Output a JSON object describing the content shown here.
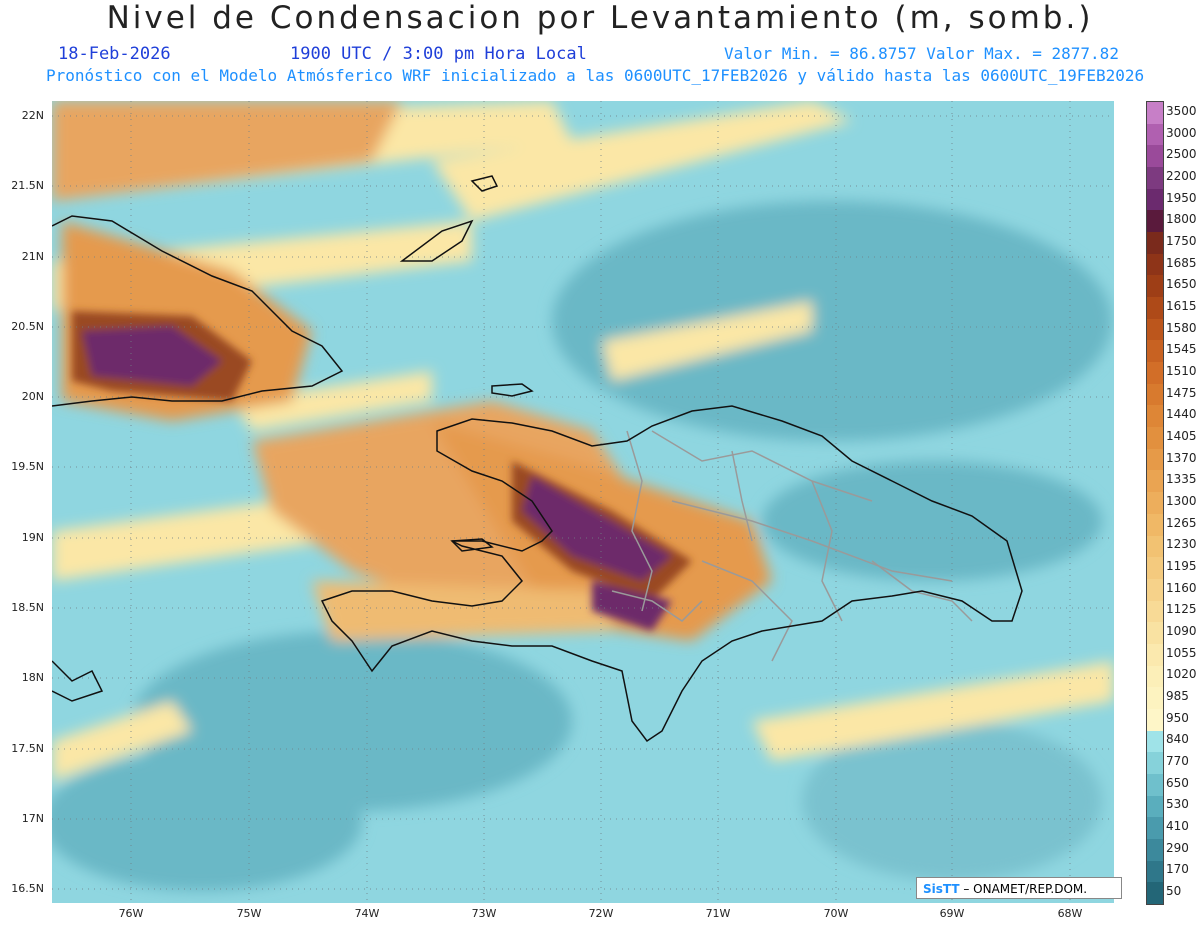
{
  "header": {
    "title": "Nivel de Condensacion por Levantamiento (m, somb.)",
    "date": "18-Feb-2026",
    "time": "1900 UTC / 3:00 pm Hora Local",
    "minmax": "Valor Min. = 86.8757  Valor Max. = 2877.82",
    "model_line": "Pronóstico con el Modelo Atmósferico WRF inicializado a las 0600UTC_17FEB2026 y válido hasta las  0600UTC_19FEB2026"
  },
  "axes": {
    "lat_labels": [
      "22N",
      "21.5N",
      "21N",
      "20.5N",
      "20N",
      "19.5N",
      "19N",
      "18.5N",
      "18N",
      "17.5N",
      "17N",
      "16.5N"
    ],
    "lon_labels": [
      "76W",
      "75W",
      "74W",
      "73W",
      "72W",
      "71W",
      "70W",
      "69W",
      "68W"
    ]
  },
  "colorbar": {
    "labels": [
      "3500",
      "3000",
      "2500",
      "2200",
      "1950",
      "1800",
      "1750",
      "1685",
      "1650",
      "1615",
      "1580",
      "1545",
      "1510",
      "1475",
      "1440",
      "1405",
      "1370",
      "1335",
      "1300",
      "1265",
      "1230",
      "1195",
      "1160",
      "1125",
      "1090",
      "1055",
      "1020",
      "985",
      "950",
      "840",
      "770",
      "650",
      "530",
      "410",
      "290",
      "170",
      "50"
    ],
    "colors": [
      "#c77fc7",
      "#b060b0",
      "#9a4a9a",
      "#7d3a80",
      "#6b2a6e",
      "#5a1a3c",
      "#7a2a1c",
      "#8e3418",
      "#9e3e16",
      "#ae4a18",
      "#bc561c",
      "#c86222",
      "#d26e28",
      "#d87a2e",
      "#de8636",
      "#e2903e",
      "#e69a48",
      "#eaa452",
      "#edae5c",
      "#f0b866",
      "#f2c272",
      "#f4ca7e",
      "#f6d28a",
      "#f8da96",
      "#f9e2a2",
      "#fbe9ae",
      "#fcefb8",
      "#fdf3c0",
      "#fef6c8",
      "#9fe3e8",
      "#86d2da",
      "#6fc0cc",
      "#5aaebd",
      "#4a9bad",
      "#3c899c",
      "#2f778a",
      "#236677"
    ],
    "semantic": "lifted-condensation-level-scale"
  },
  "credit": {
    "logo": "SisTT",
    "text": " – ONAMET/REP.DOM."
  },
  "palette": {
    "water_low": "#8fd6e0",
    "water_mid": "#6ab8c6",
    "yellow": "#fbe7a6",
    "orange": "#e59a4d",
    "brown": "#9a4a22",
    "purple": "#6d2a6a",
    "coast": "#111111",
    "borders": "#9a9a9a"
  }
}
